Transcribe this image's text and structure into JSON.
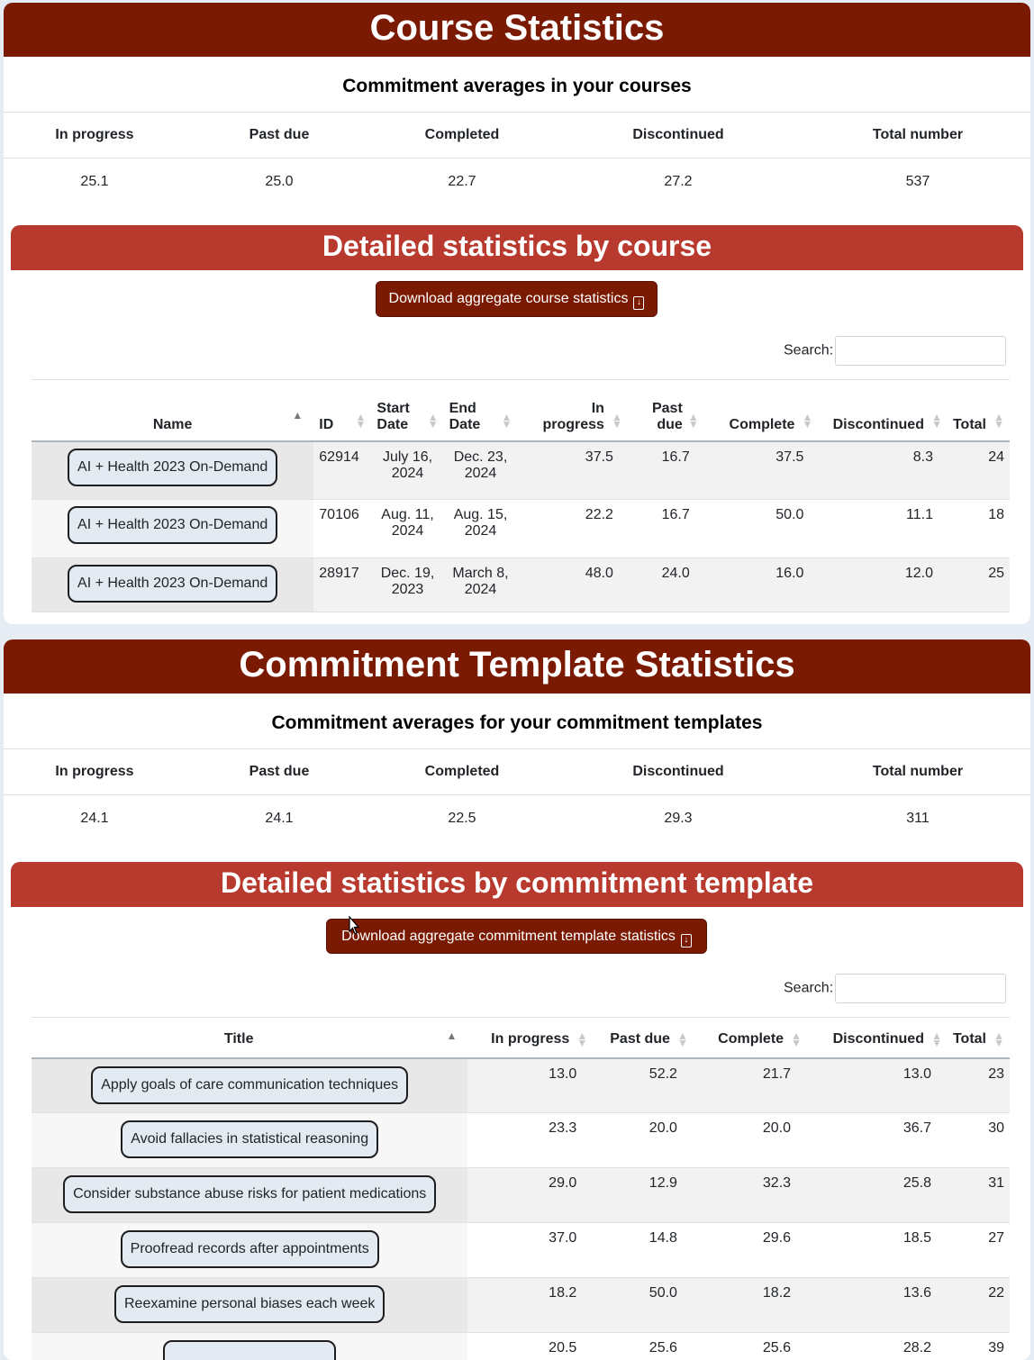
{
  "course_card": {
    "title": "Course Statistics",
    "subtitle": "Commitment averages in your courses",
    "avg_headers": [
      "In progress",
      "Past due",
      "Completed",
      "Discontinued",
      "Total number"
    ],
    "avg_values": [
      "25.1",
      "25.0",
      "22.7",
      "27.2",
      "537"
    ],
    "detail_title": "Detailed statistics by course",
    "download_label": "Download aggregate course statistics",
    "search_label": "Search:",
    "columns": {
      "name": "Name",
      "id": "ID",
      "start_1": "Start",
      "start_2": "Date",
      "end_1": "End",
      "end_2": "Date",
      "inprog_1": "In",
      "inprog_2": "progress",
      "pastdue_1": "Past",
      "pastdue_2": "due",
      "complete": "Complete",
      "discontinued": "Discontinued",
      "total": "Total"
    },
    "rows": [
      {
        "name": "AI + Health 2023 On-Demand",
        "id": "62914",
        "start_1": "July 16,",
        "start_2": "2024",
        "end_1": "Dec. 23,",
        "end_2": "2024",
        "in_progress": "37.5",
        "past_due": "16.7",
        "complete": "37.5",
        "discontinued": "8.3",
        "total": "24"
      },
      {
        "name": "AI + Health 2023 On-Demand",
        "id": "70106",
        "start_1": "Aug. 11,",
        "start_2": "2024",
        "end_1": "Aug. 15,",
        "end_2": "2024",
        "in_progress": "22.2",
        "past_due": "16.7",
        "complete": "50.0",
        "discontinued": "11.1",
        "total": "18"
      },
      {
        "name": "AI + Health 2023 On-Demand",
        "id": "28917",
        "start_1": "Dec. 19,",
        "start_2": "2023",
        "end_1": "March 8,",
        "end_2": "2024",
        "in_progress": "48.0",
        "past_due": "24.0",
        "complete": "16.0",
        "discontinued": "12.0",
        "total": "25"
      }
    ]
  },
  "template_card": {
    "title": "Commitment Template Statistics",
    "subtitle": "Commitment averages for your commitment templates",
    "avg_headers": [
      "In progress",
      "Past due",
      "Completed",
      "Discontinued",
      "Total number"
    ],
    "avg_values": [
      "24.1",
      "24.1",
      "22.5",
      "29.3",
      "311"
    ],
    "detail_title": "Detailed statistics by commitment template",
    "download_label": "Download aggregate commitment template statistics",
    "search_label": "Search:",
    "columns": {
      "title": "Title",
      "in_progress": "In progress",
      "past_due": "Past due",
      "complete": "Complete",
      "discontinued": "Discontinued",
      "total": "Total"
    },
    "rows": [
      {
        "title": "Apply goals of care communication techniques",
        "in_progress": "13.0",
        "past_due": "52.2",
        "complete": "21.7",
        "discontinued": "13.0",
        "total": "23"
      },
      {
        "title": "Avoid fallacies in statistical reasoning",
        "in_progress": "23.3",
        "past_due": "20.0",
        "complete": "20.0",
        "discontinued": "36.7",
        "total": "30"
      },
      {
        "title": "Consider substance abuse risks for patient medications",
        "in_progress": "29.0",
        "past_due": "12.9",
        "complete": "32.3",
        "discontinued": "25.8",
        "total": "31"
      },
      {
        "title": "Proofread records after appointments",
        "in_progress": "37.0",
        "past_due": "14.8",
        "complete": "29.6",
        "discontinued": "18.5",
        "total": "27"
      },
      {
        "title": "Reexamine personal biases each week",
        "in_progress": "18.2",
        "past_due": "50.0",
        "complete": "18.2",
        "discontinued": "13.6",
        "total": "22"
      },
      {
        "title": "",
        "in_progress": "20.5",
        "past_due": "25.6",
        "complete": "25.6",
        "discontinued": "28.2",
        "total": "39"
      }
    ]
  },
  "colors": {
    "header_dark": "#7b1a02",
    "header_light": "#b83a2e",
    "pill_bg": "#e3eaf2",
    "page_bg": "#e6ecf3"
  }
}
